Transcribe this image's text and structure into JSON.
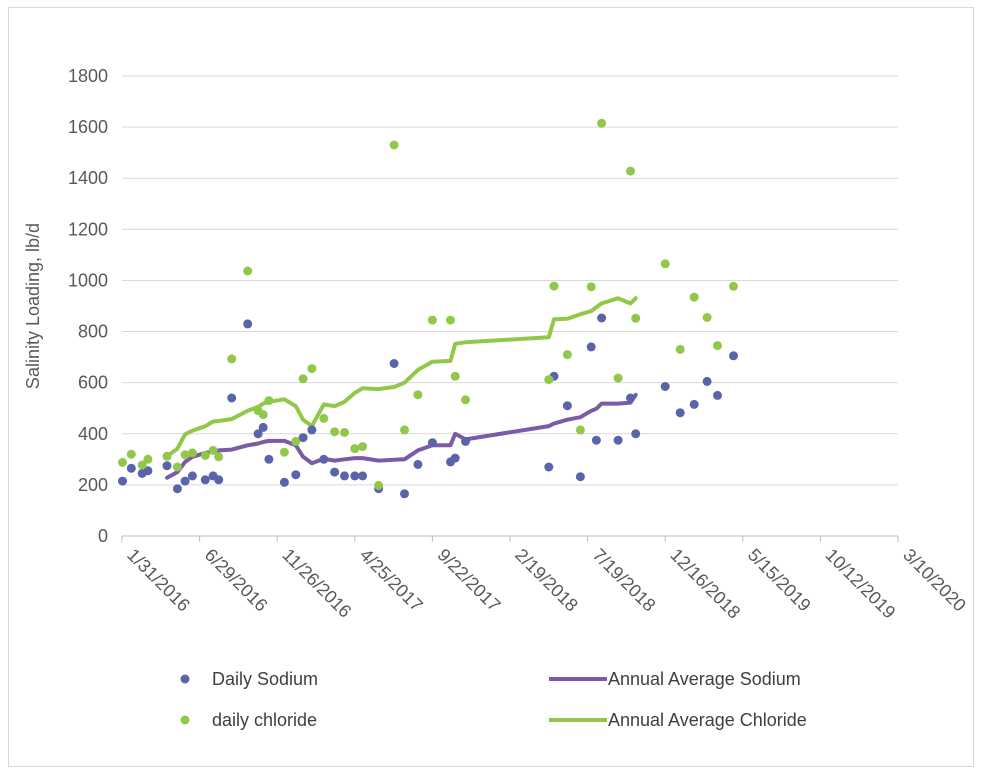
{
  "chart_data": {
    "type": "scatter",
    "title": "",
    "xlabel": "",
    "ylabel": "Salinity Loading, lb/d",
    "ylim": [
      0,
      1800
    ],
    "yticks": [
      0,
      200,
      400,
      600,
      800,
      1000,
      1200,
      1400,
      1600,
      1800
    ],
    "xlim": [
      "2016-01-31",
      "2020-03-10"
    ],
    "xtick_labels": [
      "1/31/2016",
      "6/29/2016",
      "11/26/2016",
      "4/25/2017",
      "9/22/2017",
      "2/19/2018",
      "7/19/2018",
      "12/16/2018",
      "5/15/2019",
      "10/12/2019",
      "3/10/2020"
    ],
    "xtick_dates": [
      "2016-01-31",
      "2016-06-29",
      "2016-11-26",
      "2017-04-25",
      "2017-09-22",
      "2018-02-19",
      "2018-07-19",
      "2018-12-16",
      "2019-05-15",
      "2019-10-12",
      "2020-03-10"
    ],
    "grid": true,
    "legend_position": "bottom",
    "series": [
      {
        "name": "Daily Sodium",
        "kind": "scatter",
        "color": "#5b64a8",
        "points": [
          [
            "2016-02-01",
            215
          ],
          [
            "2016-02-18",
            265
          ],
          [
            "2016-03-10",
            245
          ],
          [
            "2016-03-21",
            255
          ],
          [
            "2016-04-27",
            275
          ],
          [
            "2016-05-17",
            185
          ],
          [
            "2016-06-01",
            215
          ],
          [
            "2016-06-15",
            235
          ],
          [
            "2016-07-10",
            220
          ],
          [
            "2016-07-25",
            235
          ],
          [
            "2016-08-05",
            220
          ],
          [
            "2016-08-30",
            540
          ],
          [
            "2016-09-30",
            830
          ],
          [
            "2016-10-20",
            400
          ],
          [
            "2016-10-30",
            425
          ],
          [
            "2016-11-10",
            300
          ],
          [
            "2016-12-10",
            210
          ],
          [
            "2017-01-01",
            240
          ],
          [
            "2017-01-15",
            385
          ],
          [
            "2017-02-01",
            415
          ],
          [
            "2017-02-24",
            300
          ],
          [
            "2017-03-17",
            250
          ],
          [
            "2017-04-05",
            235
          ],
          [
            "2017-04-25",
            235
          ],
          [
            "2017-05-10",
            235
          ],
          [
            "2017-06-10",
            185
          ],
          [
            "2017-07-10",
            675
          ],
          [
            "2017-07-30",
            165
          ],
          [
            "2017-08-25",
            280
          ],
          [
            "2017-09-22",
            365
          ],
          [
            "2017-10-27",
            290
          ],
          [
            "2017-11-05",
            305
          ],
          [
            "2017-11-25",
            370
          ],
          [
            "2018-05-05",
            270
          ],
          [
            "2018-05-15",
            625
          ],
          [
            "2018-06-10",
            510
          ],
          [
            "2018-07-05",
            232
          ],
          [
            "2018-07-26",
            740
          ],
          [
            "2018-08-05",
            375
          ],
          [
            "2018-08-15",
            853
          ],
          [
            "2018-09-16",
            375
          ],
          [
            "2018-10-10",
            540
          ],
          [
            "2018-10-20",
            400
          ],
          [
            "2018-12-16",
            585
          ],
          [
            "2019-01-14",
            482
          ],
          [
            "2019-02-10",
            515
          ],
          [
            "2019-03-07",
            605
          ],
          [
            "2019-03-27",
            550
          ],
          [
            "2019-04-27",
            705
          ]
        ]
      },
      {
        "name": "daily chloride",
        "kind": "scatter",
        "color": "#92c84a",
        "points": [
          [
            "2016-02-01",
            288
          ],
          [
            "2016-02-18",
            320
          ],
          [
            "2016-03-10",
            278
          ],
          [
            "2016-03-21",
            300
          ],
          [
            "2016-04-27",
            312
          ],
          [
            "2016-05-17",
            270
          ],
          [
            "2016-06-01",
            318
          ],
          [
            "2016-06-15",
            325
          ],
          [
            "2016-07-10",
            315
          ],
          [
            "2016-07-25",
            335
          ],
          [
            "2016-08-05",
            310
          ],
          [
            "2016-08-30",
            693
          ],
          [
            "2016-09-30",
            1037
          ],
          [
            "2016-10-20",
            490
          ],
          [
            "2016-10-30",
            475
          ],
          [
            "2016-11-10",
            530
          ],
          [
            "2016-12-10",
            328
          ],
          [
            "2017-01-01",
            370
          ],
          [
            "2017-01-15",
            615
          ],
          [
            "2017-02-01",
            655
          ],
          [
            "2017-02-24",
            460
          ],
          [
            "2017-03-17",
            408
          ],
          [
            "2017-04-05",
            405
          ],
          [
            "2017-04-25",
            342
          ],
          [
            "2017-05-10",
            350
          ],
          [
            "2017-06-10",
            198
          ],
          [
            "2017-07-10",
            1530
          ],
          [
            "2017-07-30",
            415
          ],
          [
            "2017-08-25",
            553
          ],
          [
            "2017-09-22",
            845
          ],
          [
            "2017-10-27",
            845
          ],
          [
            "2017-11-05",
            625
          ],
          [
            "2017-11-25",
            533
          ],
          [
            "2018-05-05",
            612
          ],
          [
            "2018-05-15",
            978
          ],
          [
            "2018-06-10",
            710
          ],
          [
            "2018-07-05",
            415
          ],
          [
            "2018-07-26",
            975
          ],
          [
            "2018-08-15",
            1615
          ],
          [
            "2018-09-16",
            618
          ],
          [
            "2018-10-10",
            1428
          ],
          [
            "2018-10-20",
            852
          ],
          [
            "2018-12-16",
            1065
          ],
          [
            "2019-01-14",
            730
          ],
          [
            "2019-02-10",
            935
          ],
          [
            "2019-03-07",
            855
          ],
          [
            "2019-03-27",
            745
          ],
          [
            "2019-04-27",
            977
          ]
        ]
      },
      {
        "name": "Annual Average Sodium",
        "kind": "line",
        "color": "#7b5aa6",
        "points": [
          [
            "2016-04-27",
            228
          ],
          [
            "2016-05-17",
            250
          ],
          [
            "2016-06-01",
            290
          ],
          [
            "2016-06-15",
            310
          ],
          [
            "2016-07-10",
            325
          ],
          [
            "2016-07-25",
            330
          ],
          [
            "2016-08-05",
            335
          ],
          [
            "2016-08-30",
            338
          ],
          [
            "2016-09-30",
            355
          ],
          [
            "2016-10-20",
            362
          ],
          [
            "2016-10-30",
            368
          ],
          [
            "2016-11-10",
            372
          ],
          [
            "2016-12-10",
            372
          ],
          [
            "2017-01-01",
            355
          ],
          [
            "2017-01-15",
            310
          ],
          [
            "2017-02-01",
            285
          ],
          [
            "2017-02-24",
            302
          ],
          [
            "2017-03-17",
            295
          ],
          [
            "2017-04-05",
            300
          ],
          [
            "2017-04-25",
            305
          ],
          [
            "2017-05-10",
            305
          ],
          [
            "2017-06-10",
            295
          ],
          [
            "2017-07-10",
            298
          ],
          [
            "2017-07-30",
            300
          ],
          [
            "2017-08-25",
            335
          ],
          [
            "2017-09-22",
            355
          ],
          [
            "2017-10-27",
            355
          ],
          [
            "2017-11-05",
            400
          ],
          [
            "2017-11-25",
            378
          ],
          [
            "2018-05-05",
            430
          ],
          [
            "2018-05-15",
            440
          ],
          [
            "2018-06-10",
            455
          ],
          [
            "2018-07-05",
            465
          ],
          [
            "2018-07-26",
            490
          ],
          [
            "2018-08-05",
            498
          ],
          [
            "2018-08-15",
            518
          ],
          [
            "2018-09-16",
            518
          ],
          [
            "2018-10-10",
            522
          ],
          [
            "2018-10-20",
            552
          ]
        ]
      },
      {
        "name": "Annual Average Chloride",
        "kind": "line",
        "color": "#92c84a",
        "points": [
          [
            "2016-04-27",
            312
          ],
          [
            "2016-05-17",
            342
          ],
          [
            "2016-06-01",
            398
          ],
          [
            "2016-06-15",
            412
          ],
          [
            "2016-07-10",
            430
          ],
          [
            "2016-07-25",
            448
          ],
          [
            "2016-08-05",
            450
          ],
          [
            "2016-08-30",
            458
          ],
          [
            "2016-09-30",
            490
          ],
          [
            "2016-10-20",
            505
          ],
          [
            "2016-10-30",
            518
          ],
          [
            "2016-11-10",
            525
          ],
          [
            "2016-12-10",
            535
          ],
          [
            "2017-01-01",
            508
          ],
          [
            "2017-01-15",
            455
          ],
          [
            "2017-02-01",
            430
          ],
          [
            "2017-02-24",
            515
          ],
          [
            "2017-03-17",
            508
          ],
          [
            "2017-04-05",
            525
          ],
          [
            "2017-04-25",
            560
          ],
          [
            "2017-05-10",
            578
          ],
          [
            "2017-06-10",
            575
          ],
          [
            "2017-07-10",
            583
          ],
          [
            "2017-07-30",
            600
          ],
          [
            "2017-08-25",
            650
          ],
          [
            "2017-09-22",
            682
          ],
          [
            "2017-10-27",
            685
          ],
          [
            "2017-11-05",
            752
          ],
          [
            "2017-11-25",
            758
          ],
          [
            "2018-05-05",
            778
          ],
          [
            "2018-05-15",
            848
          ],
          [
            "2018-06-10",
            850
          ],
          [
            "2018-07-05",
            868
          ],
          [
            "2018-07-26",
            880
          ],
          [
            "2018-08-15",
            910
          ],
          [
            "2018-09-16",
            930
          ],
          [
            "2018-10-10",
            910
          ],
          [
            "2018-10-20",
            930
          ]
        ]
      }
    ],
    "legend": [
      {
        "label": "Daily Sodium",
        "marker": "dot",
        "color": "#5b64a8"
      },
      {
        "label": "Annual Average Sodium",
        "marker": "line",
        "color": "#7b5aa6"
      },
      {
        "label": "daily chloride",
        "marker": "dot",
        "color": "#92c84a"
      },
      {
        "label": "Annual Average Chloride",
        "marker": "line",
        "color": "#92c84a"
      }
    ]
  }
}
